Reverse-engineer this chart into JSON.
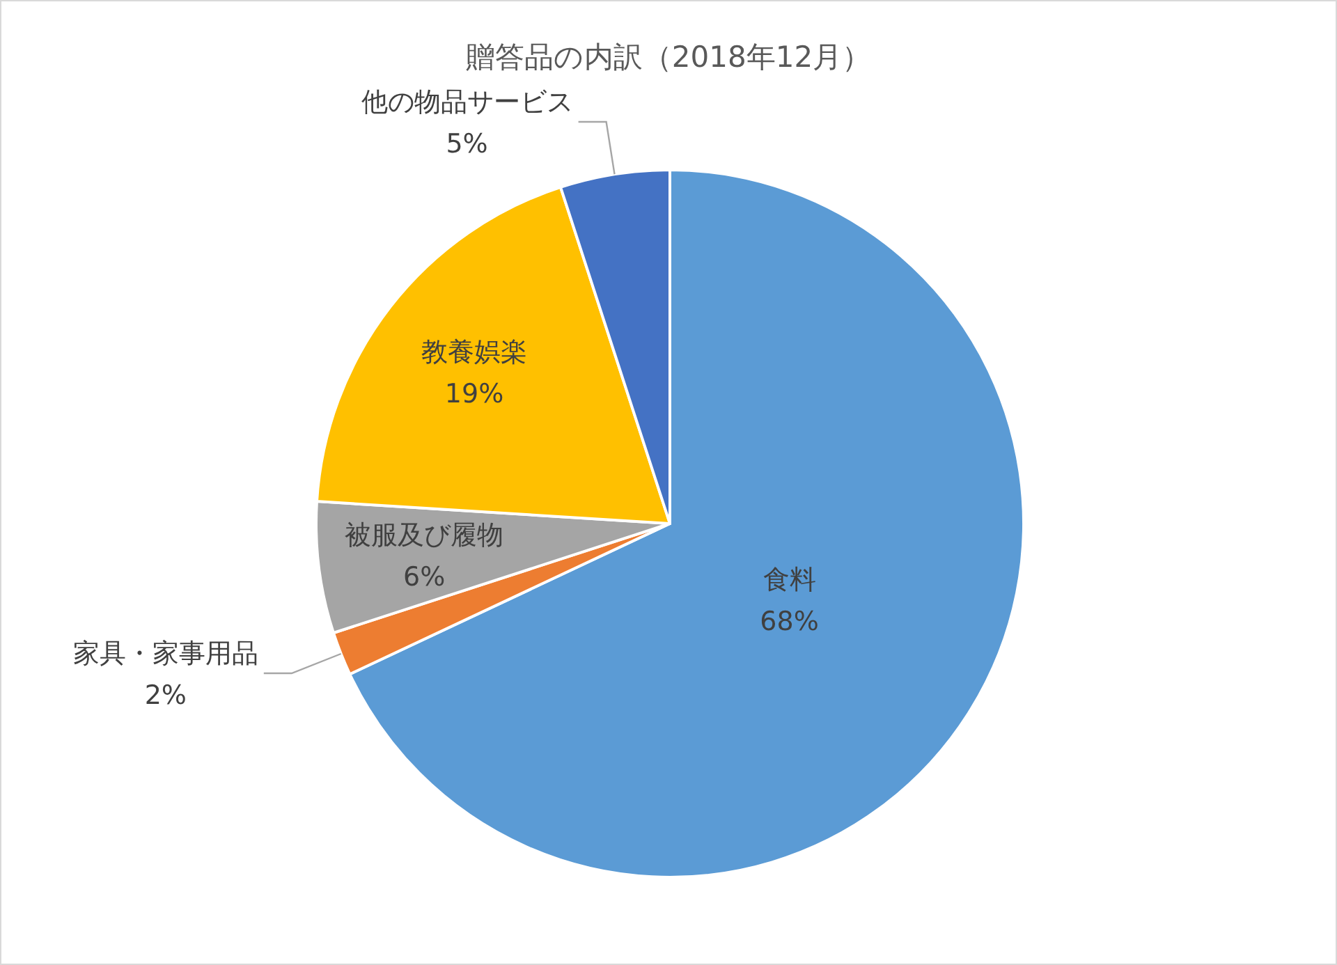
{
  "chart_data": {
    "type": "pie",
    "title": "贈答品の内訳（2018年12月）",
    "categories": [
      "食料",
      "家具・家事用品",
      "被服及び履物",
      "教養娯楽",
      "他の物品サービス"
    ],
    "values": [
      68,
      2,
      6,
      19,
      5
    ],
    "colors": [
      "#5b9bd5",
      "#ed7d31",
      "#a5a5a5",
      "#ffc000",
      "#4472c4"
    ],
    "value_labels": [
      "68%",
      "2%",
      "6%",
      "19%",
      "5%"
    ]
  }
}
